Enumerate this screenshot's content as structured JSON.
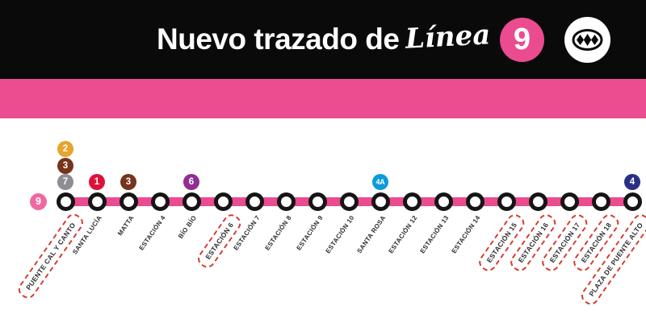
{
  "header": {
    "title": "Nuevo trazado de",
    "line_word": "Línea",
    "line_number": "9",
    "logo": "metro-de-santiago-logo"
  },
  "colors": {
    "header_bg": "#0A0A0A",
    "line_pink": "#EB4B8F",
    "band_pink": "#EC4D90",
    "dashed_box_red": "#D63A2E",
    "label_ink": "#2D2D2D",
    "start_badge_pink": "#EE69A3"
  },
  "diagram": {
    "line_start_badge": {
      "label": "9",
      "color": "#EE69A3"
    },
    "stations": [
      {
        "name": "PUENTE CAL Y CANTO",
        "boxed": true,
        "badges": [
          {
            "label": "2",
            "color": "#E5A42E"
          },
          {
            "label": "3",
            "color": "#75341C"
          },
          {
            "label": "7",
            "color": "#8D8D92"
          }
        ]
      },
      {
        "name": "SANTA LUCÍA",
        "boxed": false,
        "badges": [
          {
            "label": "1",
            "color": "#DC1239"
          }
        ]
      },
      {
        "name": "MATTA",
        "boxed": false,
        "badges": [
          {
            "label": "3",
            "color": "#75341C"
          }
        ]
      },
      {
        "name": "ESTACIÓN 4",
        "boxed": false,
        "badges": []
      },
      {
        "name": "BÍO BÍO",
        "boxed": false,
        "badges": [
          {
            "label": "6",
            "color": "#8F2E93"
          }
        ]
      },
      {
        "name": "ESTACIÓN 6",
        "boxed": true,
        "badges": []
      },
      {
        "name": "ESTACIÓN 7",
        "boxed": false,
        "badges": []
      },
      {
        "name": "ESTACIÓN 8",
        "boxed": false,
        "badges": []
      },
      {
        "name": "ESTACIÓN 9",
        "boxed": false,
        "badges": []
      },
      {
        "name": "ESTACIÓN 10",
        "boxed": false,
        "badges": []
      },
      {
        "name": "SANTA ROSA",
        "boxed": false,
        "badges": [
          {
            "label": "4A",
            "color": "#0D9BD8"
          }
        ]
      },
      {
        "name": "ESTACIÓN 12",
        "boxed": false,
        "badges": []
      },
      {
        "name": "ESTACIÓN 13",
        "boxed": false,
        "badges": []
      },
      {
        "name": "ESTACIÓN 14",
        "boxed": false,
        "badges": []
      },
      {
        "name": "ESTACIÓN 15",
        "boxed": true,
        "badges": []
      },
      {
        "name": "ESTACIÓN 16",
        "boxed": true,
        "badges": []
      },
      {
        "name": "ESTACIÓN 17",
        "boxed": true,
        "badges": []
      },
      {
        "name": "ESTACIÓN 18",
        "boxed": true,
        "badges": []
      },
      {
        "name": "PLAZA DE PUENTE ALTO",
        "boxed": true,
        "badges": [
          {
            "label": "4",
            "color": "#2A2F86"
          }
        ]
      }
    ]
  }
}
